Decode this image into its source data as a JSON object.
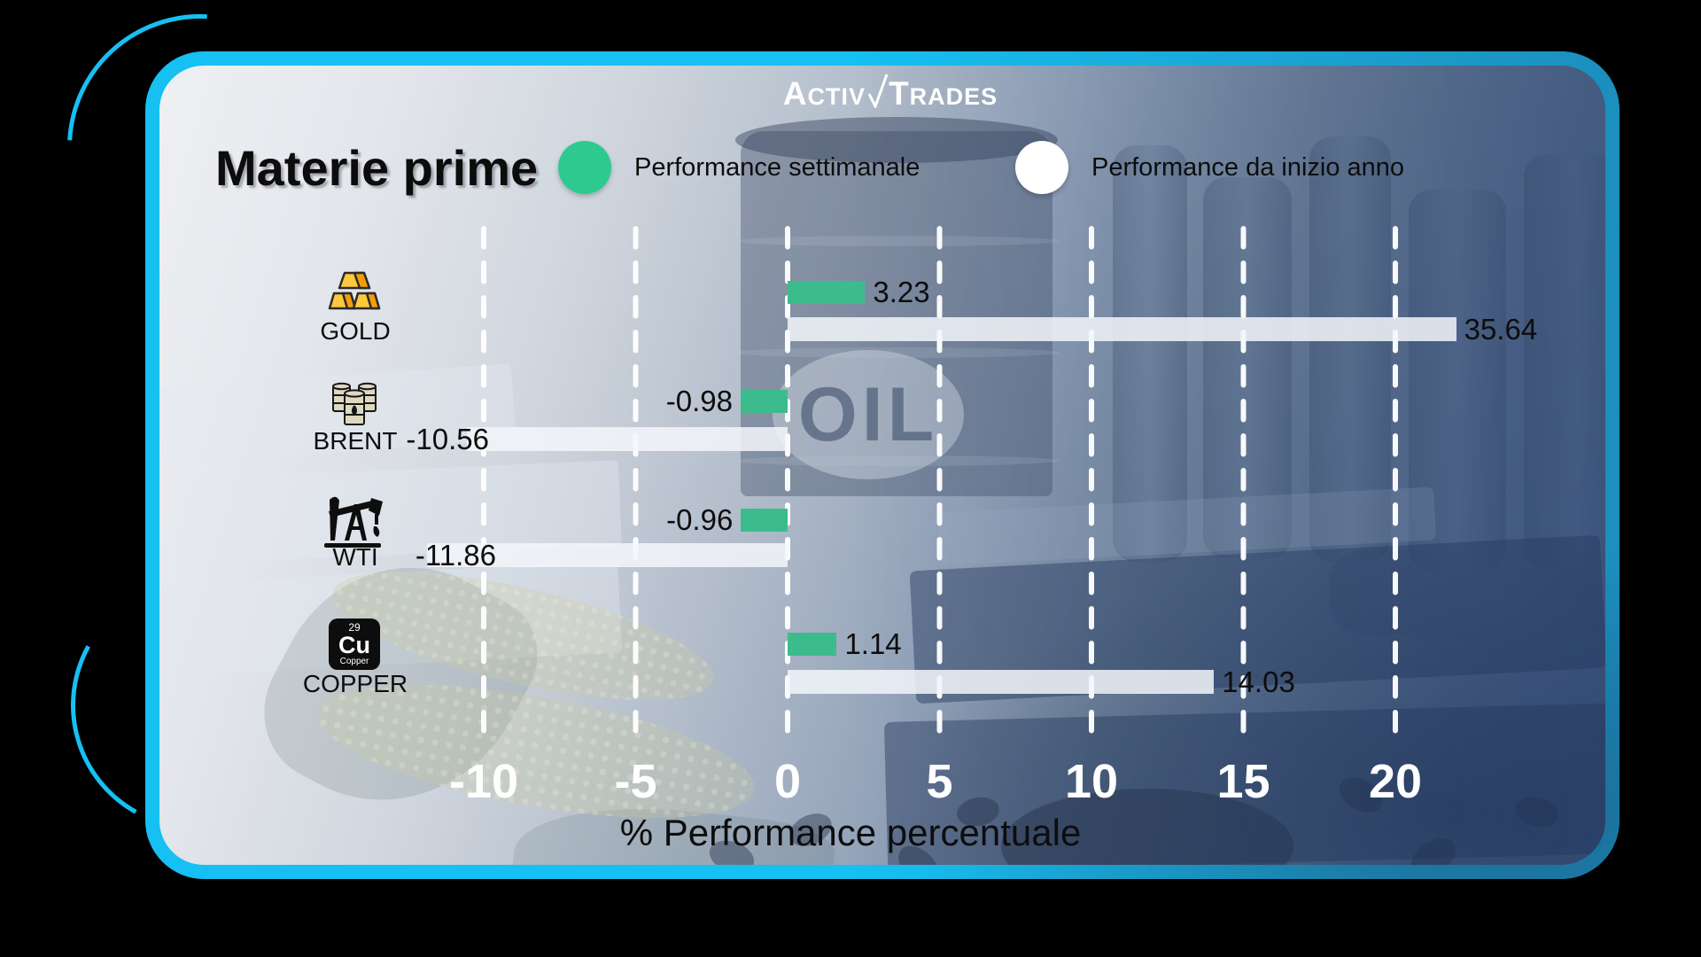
{
  "brand": {
    "part1": "Activ",
    "part2": "Trades"
  },
  "title": "Materie prime",
  "legend": {
    "weekly": {
      "label": "Performance settimanale",
      "color": "#2ec98f"
    },
    "ytd": {
      "label": "Performance da inizio anno",
      "color": "#ffffff"
    }
  },
  "background": {
    "oil_text": "OIL"
  },
  "copper_icon": {
    "number": "29",
    "symbol": "Cu",
    "name": "Copper"
  },
  "chart_data": {
    "type": "bar",
    "orientation": "horizontal",
    "categories": [
      "GOLD",
      "BRENT",
      "WTI",
      "COPPER"
    ],
    "icons": [
      "gold-bars-icon",
      "oil-barrels-icon",
      "oil-pump-icon",
      "copper-element-icon"
    ],
    "series": [
      {
        "name": "Performance settimanale",
        "color": "#3cbb8d",
        "values": [
          3.23,
          -0.98,
          -0.96,
          1.14
        ]
      },
      {
        "name": "Performance da inizio anno",
        "color": "#ffffff",
        "values": [
          35.64,
          -10.56,
          -11.86,
          14.03
        ]
      }
    ],
    "value_labels": {
      "weekly": [
        "3.23",
        "-0.98",
        "-0.96",
        "1.14"
      ],
      "ytd": [
        "35.64",
        "-10.56",
        "-11.86",
        "14.03"
      ]
    },
    "xticks": [
      -10,
      -5,
      0,
      5,
      10,
      15,
      20
    ],
    "xlim": [
      -12.8,
      22.0
    ],
    "grid": "dashed-vertical-white",
    "xlabel": "% Performance percentuale"
  }
}
